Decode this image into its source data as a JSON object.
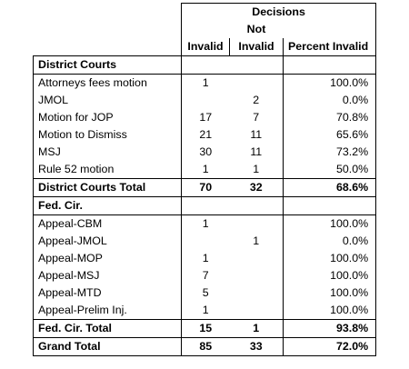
{
  "header": {
    "group": "Decisions",
    "not_line1": "Not",
    "col_invalid": "Invalid",
    "col_not_invalid": "Invalid",
    "col_percent": "Percent Invalid"
  },
  "district": {
    "section_label": "District Courts",
    "rows": [
      {
        "label": "Attorneys fees motion",
        "invalid": "1",
        "not_invalid": "",
        "percent": "100.0%"
      },
      {
        "label": "JMOL",
        "invalid": "",
        "not_invalid": "2",
        "percent": "0.0%"
      },
      {
        "label": "Motion for JOP",
        "invalid": "17",
        "not_invalid": "7",
        "percent": "70.8%"
      },
      {
        "label": "Motion to Dismiss",
        "invalid": "21",
        "not_invalid": "11",
        "percent": "65.6%"
      },
      {
        "label": "MSJ",
        "invalid": "30",
        "not_invalid": "11",
        "percent": "73.2%"
      },
      {
        "label": "Rule 52 motion",
        "invalid": "1",
        "not_invalid": "1",
        "percent": "50.0%"
      }
    ],
    "total": {
      "label": "District Courts Total",
      "invalid": "70",
      "not_invalid": "32",
      "percent": "68.6%"
    }
  },
  "fedcir": {
    "section_label": "Fed. Cir.",
    "rows": [
      {
        "label": "Appeal-CBM",
        "invalid": "1",
        "not_invalid": "",
        "percent": "100.0%"
      },
      {
        "label": "Appeal-JMOL",
        "invalid": "",
        "not_invalid": "1",
        "percent": "0.0%"
      },
      {
        "label": "Appeal-MOP",
        "invalid": "1",
        "not_invalid": "",
        "percent": "100.0%"
      },
      {
        "label": "Appeal-MSJ",
        "invalid": "7",
        "not_invalid": "",
        "percent": "100.0%"
      },
      {
        "label": "Appeal-MTD",
        "invalid": "5",
        "not_invalid": "",
        "percent": "100.0%"
      },
      {
        "label": "Appeal-Prelim Inj.",
        "invalid": "1",
        "not_invalid": "",
        "percent": "100.0%"
      }
    ],
    "total": {
      "label": "Fed. Cir. Total",
      "invalid": "15",
      "not_invalid": "1",
      "percent": "93.8%"
    }
  },
  "grand_total": {
    "label": "Grand Total",
    "invalid": "85",
    "not_invalid": "33",
    "percent": "72.0%"
  }
}
